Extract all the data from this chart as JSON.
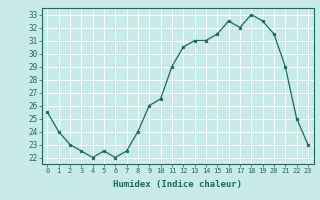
{
  "x": [
    0,
    1,
    2,
    3,
    4,
    5,
    6,
    7,
    8,
    9,
    10,
    11,
    12,
    13,
    14,
    15,
    16,
    17,
    18,
    19,
    20,
    21,
    22,
    23
  ],
  "y": [
    25.5,
    24.0,
    23.0,
    22.5,
    22.0,
    22.5,
    22.0,
    22.5,
    24.0,
    26.0,
    26.5,
    29.0,
    30.5,
    31.0,
    31.0,
    31.5,
    32.5,
    32.0,
    33.0,
    32.5,
    31.5,
    29.0,
    25.0,
    23.0
  ],
  "line_color": "#1a6b5a",
  "marker_color": "#1a6b5a",
  "bg_color": "#c8eaea",
  "grid_color": "#ffffff",
  "xlabel": "Humidex (Indice chaleur)",
  "ylim": [
    21.5,
    33.5
  ],
  "xlim": [
    -0.5,
    23.5
  ],
  "yticks": [
    22,
    23,
    24,
    25,
    26,
    27,
    28,
    29,
    30,
    31,
    32,
    33
  ],
  "xticks": [
    0,
    1,
    2,
    3,
    4,
    5,
    6,
    7,
    8,
    9,
    10,
    11,
    12,
    13,
    14,
    15,
    16,
    17,
    18,
    19,
    20,
    21,
    22,
    23
  ]
}
